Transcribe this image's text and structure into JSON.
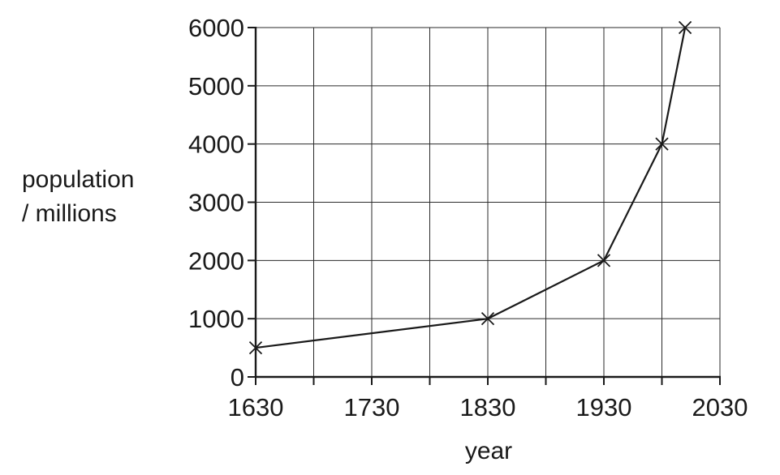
{
  "chart_data": {
    "type": "line",
    "title": "",
    "xlabel": "year",
    "ylabel_line1": "population",
    "ylabel_line2": "/ millions",
    "xlim": [
      1630,
      2030
    ],
    "ylim": [
      0,
      6000
    ],
    "x_ticks": [
      1630,
      1730,
      1830,
      1930,
      2030
    ],
    "y_ticks": [
      0,
      1000,
      2000,
      3000,
      4000,
      5000,
      6000
    ],
    "x_grid_step": 50,
    "y_grid_step": 1000,
    "grid": true,
    "marker": "cross",
    "x": [
      1630,
      1830,
      1930,
      1980,
      2000
    ],
    "y": [
      500,
      1000,
      2000,
      4000,
      6000
    ]
  }
}
